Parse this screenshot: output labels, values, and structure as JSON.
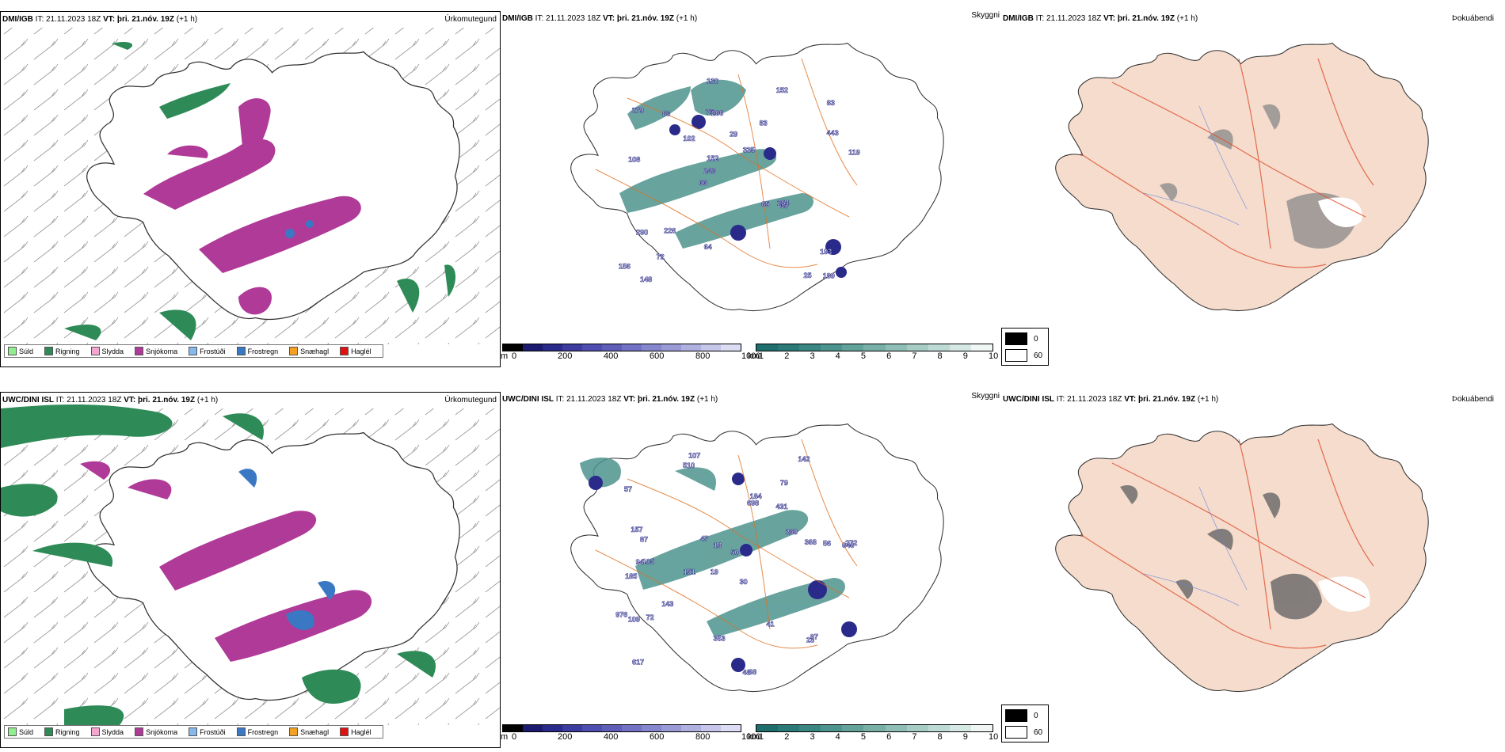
{
  "rows": [
    {
      "model": "DMI/IGB",
      "it_label": "IT:",
      "it_value": "21.11.2023 18Z",
      "vt_label": "VT:",
      "vt_value": "þri. 21.nóv. 19Z",
      "lead": "(+1 h)"
    },
    {
      "model": "UWC/DINI ISL",
      "it_label": "IT:",
      "it_value": "21.11.2023 18Z",
      "vt_label": "VT:",
      "vt_value": "þri. 21.nóv. 19Z",
      "lead": "(+1 h)"
    }
  ],
  "panel_titles": {
    "precip": "Úrkomutegund",
    "visibility": "Skyggni",
    "fog": "Þokuábendi"
  },
  "precip_legend": [
    {
      "label": "Súld",
      "color": "#90ee90"
    },
    {
      "label": "Rigning",
      "color": "#2e8b57"
    },
    {
      "label": "Slydda",
      "color": "#f4a6d0"
    },
    {
      "label": "Snjókoma",
      "color": "#b03a98"
    },
    {
      "label": "Frostúði",
      "color": "#87b8ec"
    },
    {
      "label": "Frostregn",
      "color": "#3a78c4"
    },
    {
      "label": "Snæhagl",
      "color": "#f5a020"
    },
    {
      "label": "Haglél",
      "color": "#e01010"
    }
  ],
  "colorbar_m": {
    "unit": "m",
    "ticks": [
      "0",
      "200",
      "400",
      "600",
      "800",
      "1000"
    ],
    "colors": [
      "#000000",
      "#1a1a6e",
      "#2a2a8a",
      "#3c3ca0",
      "#4e4eb0",
      "#5e5eb8",
      "#7272c4",
      "#8686cc",
      "#9a9ad6",
      "#b0b0e0",
      "#c6c6ea",
      "#dcdcf4"
    ]
  },
  "colorbar_km": {
    "unit": "km",
    "ticks": [
      "1",
      "2",
      "3",
      "4",
      "5",
      "6",
      "7",
      "8",
      "9",
      "10"
    ],
    "colors": [
      "#1e6e6e",
      "#2c7a78",
      "#3a8682",
      "#4e948e",
      "#62a29a",
      "#78b0a8",
      "#8ebeb6",
      "#a6ccc4",
      "#bedad4",
      "#d6e8e4",
      "#f0f6f4"
    ]
  },
  "fog_legend": [
    {
      "label": "0",
      "color": "#000000"
    },
    {
      "label": "60",
      "color": "#ffffff"
    }
  ],
  "visibility_labels": {
    "top": [
      "189",
      "108",
      "83",
      "66",
      "83",
      "148",
      "75",
      "29",
      "290",
      "102",
      "156",
      "72",
      "266",
      "335",
      "65",
      "279",
      "130",
      "119",
      "65",
      "443",
      "243",
      "64",
      "152",
      "83",
      "152",
      "226",
      "25",
      "193",
      "254"
    ],
    "bottom": [
      "107",
      "79",
      "646",
      "19",
      "30",
      "105",
      "57",
      "431",
      "185",
      "698",
      "50",
      "617",
      "510",
      "151",
      "48",
      "68",
      "353",
      "142",
      "260",
      "143",
      "87",
      "94",
      "272",
      "56",
      "976",
      "157",
      "18",
      "368",
      "97",
      "109",
      "23",
      "184",
      "72",
      "47",
      "41"
    ]
  },
  "colors": {
    "snow": "#b03a98",
    "rain": "#2e8b57",
    "road": "#e07020",
    "land": "#f5dccc"
  }
}
